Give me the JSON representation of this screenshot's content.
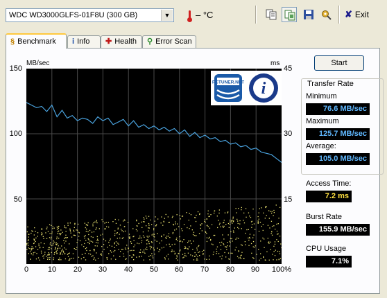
{
  "toolbar": {
    "drive": "WDC WD3000GLFS-01F8U (300 GB)",
    "temperature": "– °C",
    "exit_label": "Exit",
    "icons": [
      "copy-text-icon",
      "copy-screenshot-icon",
      "save-icon",
      "options-icon",
      "exit-icon"
    ]
  },
  "tabs": [
    {
      "label": "Benchmark",
      "icon": "benchmark-icon",
      "active": true
    },
    {
      "label": "Info",
      "icon": "info-icon"
    },
    {
      "label": "Health",
      "icon": "health-cross-icon"
    },
    {
      "label": "Error Scan",
      "icon": "magnifier-icon"
    }
  ],
  "benchmark": {
    "start_label": "Start",
    "transfer_rate": {
      "title": "Transfer Rate",
      "minimum_label": "Minimum",
      "minimum": "76.6 MB/sec",
      "maximum_label": "Maximum",
      "maximum": "125.7 MB/sec",
      "average_label": "Average:",
      "average": "105.0 MB/sec"
    },
    "access_time_label": "Access Time:",
    "access_time": "7.2 ms",
    "burst_rate_label": "Burst Rate",
    "burst_rate": "155.9 MB/sec",
    "cpu_usage_label": "CPU Usage",
    "cpu_usage": "7.1%",
    "logos": [
      "PCTUNER.NET",
      "i"
    ]
  },
  "chart_data": {
    "type": "line",
    "ylabel": "MB/sec",
    "y2label": "ms",
    "ylim": [
      0,
      150
    ],
    "y2lim": [
      0,
      45
    ],
    "yticks": [
      "150",
      "100",
      "50"
    ],
    "y2ticks": [
      "45",
      "30",
      "15"
    ],
    "xticks": [
      "0",
      "10",
      "20",
      "30",
      "40",
      "50",
      "60",
      "70",
      "80",
      "90",
      "100%"
    ],
    "xlim": [
      0,
      100
    ],
    "grid": true,
    "background": "#000000",
    "colors": {
      "transfer": "#4aa3df",
      "access": "#e8e070"
    },
    "series": [
      {
        "kind": "transfer",
        "x": [
          0,
          2,
          4,
          6,
          8,
          10,
          12,
          14,
          16,
          18,
          20,
          22,
          24,
          26,
          28,
          30,
          32,
          34,
          36,
          38,
          40,
          42,
          44,
          46,
          48,
          50,
          52,
          54,
          56,
          58,
          60,
          62,
          64,
          66,
          68,
          70,
          72,
          74,
          76,
          78,
          80,
          82,
          84,
          86,
          88,
          90,
          92,
          94,
          96,
          98,
          100
        ],
        "values": [
          124,
          122,
          120,
          121,
          117,
          122,
          113,
          118,
          112,
          114,
          110,
          112,
          111,
          108,
          113,
          110,
          112,
          107,
          109,
          111,
          106,
          110,
          105,
          107,
          104,
          106,
          103,
          105,
          102,
          104,
          100,
          103,
          98,
          101,
          97,
          99,
          96,
          97,
          94,
          95,
          92,
          93,
          90,
          91,
          88,
          89,
          86,
          85,
          84,
          81,
          78
        ]
      },
      {
        "kind": "access",
        "x_start": 0,
        "x_end": 100,
        "ms_min": 1,
        "ms_max": 14
      }
    ]
  }
}
